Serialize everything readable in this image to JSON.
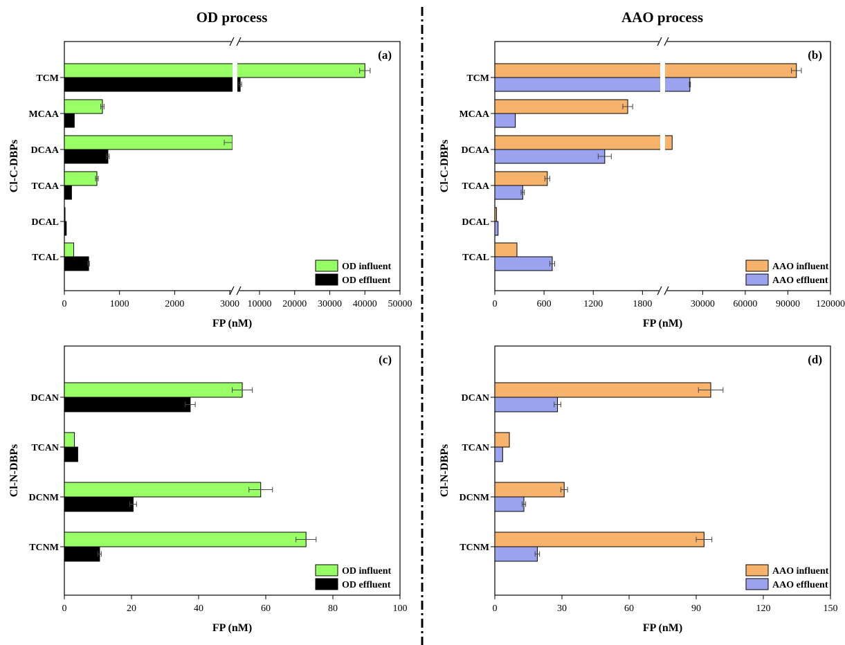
{
  "figure": {
    "left_title": "OD process",
    "right_title": "AAO process"
  },
  "chart_data": [
    {
      "id": "a",
      "type": "bar",
      "orientation": "horizontal",
      "panel_label": "(a)",
      "title": "",
      "xlabel": "FP (nM)",
      "ylabel": "Cl-C-DBPs",
      "categories": [
        "TCM",
        "MCAA",
        "DCAA",
        "TCAA",
        "DCAL",
        "TCAL"
      ],
      "axis_break": true,
      "x_segments": [
        {
          "range": [
            0,
            3100
          ],
          "ticks": [
            0,
            1000,
            2000,
            3000
          ],
          "tick_labels": [
            "0",
            "1000",
            "2000",
            "3000"
          ]
        },
        {
          "range": [
            3100,
            50000
          ],
          "ticks": [
            10000,
            20000,
            30000,
            40000,
            50000
          ],
          "tick_labels": [
            "10000",
            "20000",
            "30000",
            "40000",
            "50000"
          ]
        }
      ],
      "series": [
        {
          "name": "OD influent",
          "color": "#99ff66",
          "values": [
            40000,
            690,
            3050,
            590,
            8,
            170
          ],
          "errors": [
            1500,
            30,
            150,
            25,
            0,
            0
          ]
        },
        {
          "name": "OD effluent",
          "color": "#000000",
          "values": [
            4500,
            180,
            790,
            130,
            35,
            440
          ],
          "errors": [
            400,
            0,
            25,
            0,
            0,
            15
          ]
        }
      ],
      "legend": {
        "position": "bottom-right"
      }
    },
    {
      "id": "b",
      "type": "bar",
      "orientation": "horizontal",
      "panel_label": "(b)",
      "title": "",
      "xlabel": "FP (nM)",
      "ylabel": "Cl-C-DBPs",
      "categories": [
        "TCM",
        "MCAA",
        "DCAA",
        "TCAA",
        "DCAL",
        "TCAL"
      ],
      "axis_break": true,
      "x_segments": [
        {
          "range": [
            0,
            2050
          ],
          "ticks": [
            0,
            600,
            1200,
            1800
          ],
          "tick_labels": [
            "0",
            "600",
            "1200",
            "1800"
          ]
        },
        {
          "range": [
            2050,
            120000
          ],
          "ticks": [
            30000,
            60000,
            90000,
            120000
          ],
          "tick_labels": [
            "30000",
            "60000",
            "90000",
            "120000"
          ]
        }
      ],
      "series": [
        {
          "name": "AAO influent",
          "color": "#f7b36b",
          "values": [
            96000,
            1620,
            8500,
            640,
            20,
            270
          ],
          "errors": [
            3500,
            60,
            0,
            30,
            0,
            0
          ]
        },
        {
          "name": "AAO effluent",
          "color": "#9ba3ee",
          "values": [
            21000,
            250,
            1340,
            340,
            40,
            700
          ],
          "errors": [
            400,
            0,
            80,
            20,
            0,
            30
          ]
        }
      ],
      "legend": {
        "position": "bottom-right"
      }
    },
    {
      "id": "c",
      "type": "bar",
      "orientation": "horizontal",
      "panel_label": "(c)",
      "title": "",
      "xlabel": "FP (nM)",
      "ylabel": "Cl-N-DBPs",
      "categories": [
        "DCAN",
        "TCAN",
        "DCNM",
        "TCNM"
      ],
      "xlim": [
        0,
        100
      ],
      "x_ticks": [
        0,
        20,
        40,
        60,
        80,
        100
      ],
      "series": [
        {
          "name": "OD influent",
          "color": "#99ff66",
          "values": [
            53,
            3,
            58.5,
            72
          ],
          "errors": [
            3,
            0,
            3.5,
            3
          ]
        },
        {
          "name": "OD effluent",
          "color": "#000000",
          "values": [
            37.5,
            4,
            20.5,
            10.5
          ],
          "errors": [
            1.5,
            0,
            1,
            0.5
          ]
        }
      ],
      "legend": {
        "position": "bottom-right"
      }
    },
    {
      "id": "d",
      "type": "bar",
      "orientation": "horizontal",
      "panel_label": "(d)",
      "title": "",
      "xlabel": "FP (nM)",
      "ylabel": "Cl-N-DBPs",
      "categories": [
        "DCAN",
        "TCAN",
        "DCNM",
        "TCNM"
      ],
      "xlim": [
        0,
        150
      ],
      "x_ticks": [
        0,
        30,
        60,
        90,
        120,
        150
      ],
      "series": [
        {
          "name": "AAO influent",
          "color": "#f7b36b",
          "values": [
            96.5,
            6.5,
            31,
            93.5
          ],
          "errors": [
            5.5,
            0,
            1.5,
            3.5
          ]
        },
        {
          "name": "AAO effluent",
          "color": "#9ba3ee",
          "values": [
            28,
            3.5,
            13,
            19
          ],
          "errors": [
            1.5,
            0,
            0.8,
            1
          ]
        }
      ],
      "legend": {
        "position": "bottom-right"
      }
    }
  ]
}
